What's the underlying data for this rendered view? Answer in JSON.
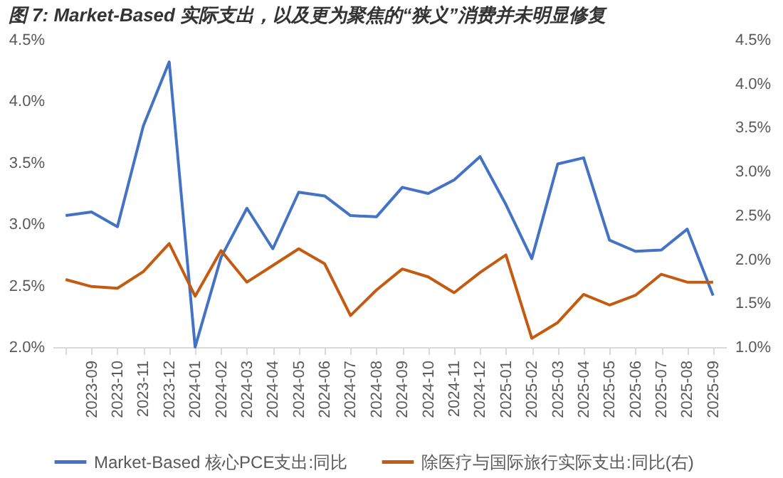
{
  "chart_data": {
    "type": "line",
    "title": "图 7: Market-Based 实际支出，以及更为聚焦的“狭义”消费并未明显修复",
    "categories": [
      null,
      "2023-09",
      "2023-10",
      "2023-11",
      "2023-12",
      "2024-01",
      "2024-02",
      "2024-03",
      "2024-04",
      "2024-05",
      "2024-06",
      "2024-07",
      "2024-08",
      "2024-09",
      "2024-10",
      "2024-11",
      "2024-12",
      "2025-01",
      "2025-02",
      "2025-03",
      "2025-04",
      "2025-05",
      "2025-06",
      "2025-07",
      "2025-08",
      "2025-09"
    ],
    "series": [
      {
        "name": "Market-Based 核心PCE支出:同比",
        "color": "#4472c4",
        "values": [
          3.07,
          3.1,
          2.98,
          3.8,
          4.32,
          2.0,
          2.73,
          3.13,
          2.8,
          3.26,
          3.23,
          3.07,
          3.06,
          3.3,
          3.25,
          3.36,
          3.55,
          3.16,
          2.72,
          3.49,
          3.54,
          2.87,
          2.78,
          2.79,
          2.96,
          2.42
        ]
      },
      {
        "name": "除医疗与国际旅行实际支出:同比(右)",
        "color": "#c55a11",
        "axis": "y2",
        "values": [
          1.77,
          1.69,
          1.67,
          1.86,
          2.18,
          1.58,
          2.1,
          1.74,
          1.93,
          2.12,
          1.95,
          1.36,
          1.65,
          1.89,
          1.8,
          1.62,
          1.85,
          2.05,
          1.1,
          1.28,
          1.6,
          1.48,
          1.59,
          1.83,
          1.74,
          1.74
        ]
      }
    ],
    "ylim": [
      2.0,
      4.5
    ],
    "yticks": [
      {
        "value": 2.0,
        "label": "2.0%"
      },
      {
        "value": 2.5,
        "label": "2.5%"
      },
      {
        "value": 3.0,
        "label": "3.0%"
      },
      {
        "value": 3.5,
        "label": "3.5%"
      },
      {
        "value": 4.0,
        "label": "4.0%"
      },
      {
        "value": 4.5,
        "label": "4.5%"
      }
    ],
    "y2lim": [
      1.0,
      4.5
    ],
    "y2ticks": [
      {
        "value": 1.0,
        "label": "1.0%"
      },
      {
        "value": 1.5,
        "label": "1.5%"
      },
      {
        "value": 2.0,
        "label": "2.0%"
      },
      {
        "value": 2.5,
        "label": "2.5%"
      },
      {
        "value": 3.0,
        "label": "3.0%"
      },
      {
        "value": 3.5,
        "label": "3.5%"
      },
      {
        "value": 4.0,
        "label": "4.0%"
      },
      {
        "value": 4.5,
        "label": "4.5%"
      }
    ],
    "grid": false,
    "legend": "bottom",
    "marker": "none",
    "line_style": "solid"
  }
}
